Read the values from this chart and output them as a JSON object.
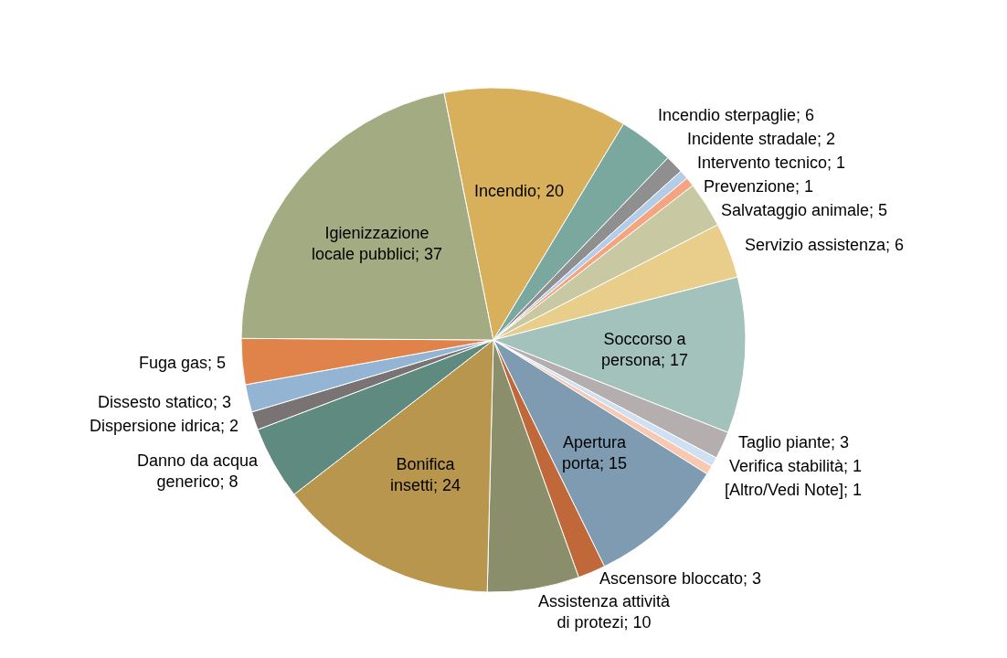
{
  "chart_data": {
    "type": "pie",
    "categories": [
      "[Altro/Vedi Note]",
      "Apertura porta",
      "Ascensore bloccato",
      "Assistenza attività di protezi",
      "Bonifica insetti",
      "Danno da acqua generico",
      "Dispersione idrica",
      "Dissesto statico",
      "Fuga gas",
      "Igienizzazione locale pubblici",
      "Incendio",
      "Incendio sterpaglie",
      "Incidente stradale",
      "Intervento tecnico",
      "Prevenzione",
      "Salvataggio animale",
      "Servizio assistenza",
      "Soccorso a persona",
      "Taglio piante",
      "Verifica stabilità"
    ],
    "values": [
      1,
      15,
      3,
      10,
      24,
      8,
      2,
      3,
      5,
      37,
      20,
      6,
      2,
      1,
      1,
      5,
      6,
      17,
      3,
      1
    ],
    "value_labels": [
      "; 1",
      "; 15",
      "; 3",
      "; 10",
      "; 24",
      "; 8",
      "; 2",
      "; 3",
      "; 5",
      "; 37",
      "; 20",
      "; 6",
      "; 2",
      "; 1",
      "; 1",
      "; 5",
      "; 6",
      "; 17",
      "; 3",
      "; 1"
    ],
    "colors": [
      "#f8c9b0",
      "#7f9bb1",
      "#c0683a",
      "#8b8e6a",
      "#b9964e",
      "#5f8a7f",
      "#7a7373",
      "#93b5d3",
      "#e0834a",
      "#a3ab82",
      "#d8b05c",
      "#7aa89e",
      "#8f8f8f",
      "#b3cde8",
      "#f4a57f",
      "#c8c9a3",
      "#e9cd8a",
      "#a3c2bb",
      "#b5aeae",
      "#cfe0f2"
    ],
    "legend": false
  }
}
